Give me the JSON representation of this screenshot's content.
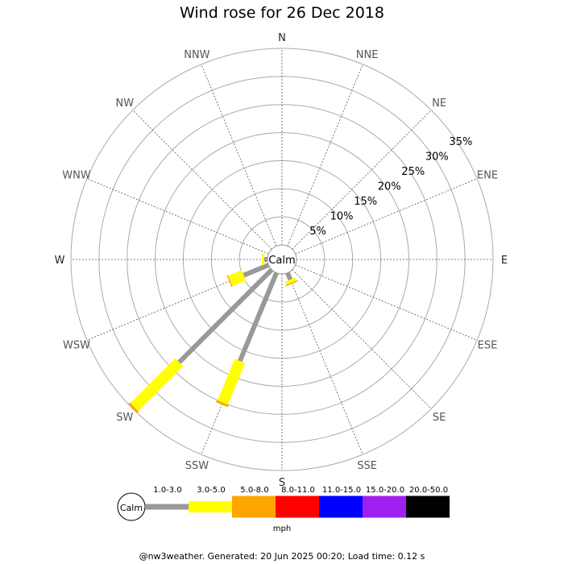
{
  "title": "Wind rose for 26 Dec 2018",
  "footer": "@nw3weather. Generated: 20 Jun 2025 00:20; Load time: 0.12 s",
  "chart_data": {
    "type": "wind_rose",
    "title": "Wind rose for 26 Dec 2018",
    "directions": [
      "N",
      "NNE",
      "NE",
      "ENE",
      "E",
      "ESE",
      "SE",
      "SSE",
      "S",
      "SSW",
      "SW",
      "WSW",
      "W",
      "WNW",
      "NW",
      "NNW"
    ],
    "rings_percent": [
      5,
      10,
      15,
      20,
      25,
      30,
      35
    ],
    "ring_labels": [
      "5%",
      "10%",
      "15%",
      "20%",
      "25%",
      "30%",
      "35%"
    ],
    "rmax_percent": 35,
    "calm_label": "Calm",
    "unit": "mph",
    "speed_bins": [
      {
        "label": "1.0-3.0",
        "color": "#999999"
      },
      {
        "label": "3.0-5.0",
        "color": "#ffff00"
      },
      {
        "label": "5.0-8.0",
        "color": "#ffa500"
      },
      {
        "label": "8.0-11.0",
        "color": "#ff0000"
      },
      {
        "label": "11.0-15.0",
        "color": "#0000ff"
      },
      {
        "label": "15.0-20.0",
        "color": "#a020f0"
      },
      {
        "label": "20.0-50.0",
        "color": "#000000"
      }
    ],
    "cumulative_percent": {
      "SSE": [
        1.3,
        1.9,
        2.1
      ],
      "S": [
        0,
        0,
        0
      ],
      "SSW": [
        17.0,
        25.0,
        25.4
      ],
      "SW": [
        23.3,
        34.6,
        35.0
      ],
      "WSW": [
        4.8,
        7.4,
        7.6
      ],
      "W": [
        0.6,
        1.0,
        1.0
      ]
    }
  }
}
